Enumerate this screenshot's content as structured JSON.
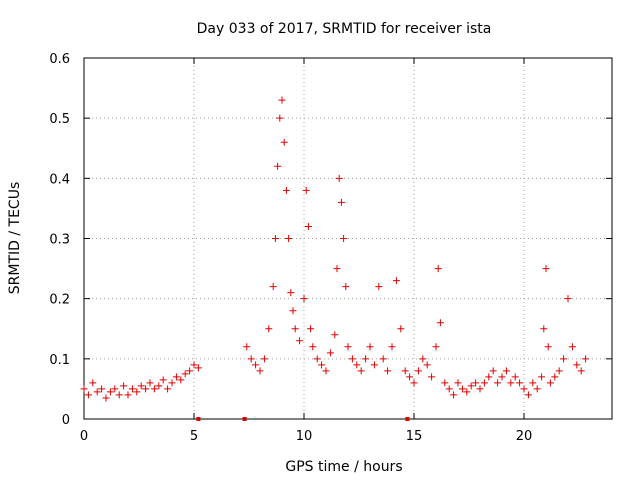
{
  "chart_data": {
    "type": "scatter",
    "title": "Day 033 of 2017, SRMTID for receiver ista",
    "xlabel": "GPS time / hours",
    "ylabel": "SRMTID / TECUs",
    "xlim": [
      0,
      24
    ],
    "ylim": [
      0,
      0.6
    ],
    "xticks": [
      0,
      5,
      10,
      15,
      20
    ],
    "xtick_labels": [
      "0",
      "5",
      "10",
      "15",
      "20"
    ],
    "yticks": [
      0,
      0.1,
      0.2,
      0.3,
      0.4,
      0.5,
      0.6
    ],
    "ytick_labels": [
      "0",
      "0.1",
      "0.2",
      "0.3",
      "0.4",
      "0.5",
      "0.6"
    ],
    "grid": true,
    "marker": "plus",
    "color": "#e00000",
    "series": [
      {
        "name": "SRMTID",
        "x": [
          0.0,
          0.2,
          0.4,
          0.6,
          0.8,
          1.0,
          1.2,
          1.4,
          1.6,
          1.8,
          2.0,
          2.2,
          2.4,
          2.6,
          2.8,
          3.0,
          3.2,
          3.4,
          3.6,
          3.8,
          4.0,
          4.2,
          4.4,
          4.6,
          4.8,
          5.0,
          5.2,
          7.4,
          7.6,
          7.8,
          8.0,
          8.2,
          8.4,
          8.6,
          8.7,
          8.8,
          8.9,
          9.0,
          9.1,
          9.2,
          9.3,
          9.4,
          9.5,
          9.6,
          9.8,
          10.0,
          10.1,
          10.2,
          10.3,
          10.4,
          10.6,
          10.8,
          11.0,
          11.2,
          11.4,
          11.5,
          11.6,
          11.7,
          11.8,
          11.9,
          12.0,
          12.2,
          12.4,
          12.6,
          12.8,
          13.0,
          13.2,
          13.4,
          13.6,
          13.8,
          14.0,
          14.2,
          14.4,
          14.6,
          14.8,
          15.0,
          15.2,
          15.4,
          15.6,
          15.8,
          16.0,
          16.1,
          16.2,
          16.4,
          16.6,
          16.8,
          17.0,
          17.2,
          17.4,
          17.6,
          17.8,
          18.0,
          18.2,
          18.4,
          18.6,
          18.8,
          19.0,
          19.2,
          19.4,
          19.6,
          19.8,
          20.0,
          20.2,
          20.4,
          20.6,
          20.8,
          20.9,
          21.0,
          21.1,
          21.2,
          21.4,
          21.6,
          21.8,
          22.0,
          22.2,
          22.4,
          22.6,
          22.8
        ],
        "y": [
          0.05,
          0.04,
          0.06,
          0.045,
          0.05,
          0.035,
          0.045,
          0.05,
          0.04,
          0.055,
          0.04,
          0.05,
          0.045,
          0.055,
          0.05,
          0.06,
          0.05,
          0.055,
          0.065,
          0.05,
          0.06,
          0.07,
          0.065,
          0.075,
          0.08,
          0.09,
          0.085,
          0.12,
          0.1,
          0.09,
          0.08,
          0.1,
          0.15,
          0.22,
          0.3,
          0.42,
          0.5,
          0.53,
          0.46,
          0.38,
          0.3,
          0.21,
          0.18,
          0.15,
          0.13,
          0.2,
          0.38,
          0.32,
          0.15,
          0.12,
          0.1,
          0.09,
          0.08,
          0.11,
          0.14,
          0.25,
          0.4,
          0.36,
          0.3,
          0.22,
          0.12,
          0.1,
          0.09,
          0.08,
          0.1,
          0.12,
          0.09,
          0.22,
          0.1,
          0.08,
          0.12,
          0.23,
          0.15,
          0.08,
          0.07,
          0.06,
          0.08,
          0.1,
          0.09,
          0.07,
          0.12,
          0.25,
          0.16,
          0.06,
          0.05,
          0.04,
          0.06,
          0.05,
          0.045,
          0.055,
          0.06,
          0.05,
          0.06,
          0.07,
          0.08,
          0.06,
          0.07,
          0.08,
          0.06,
          0.07,
          0.06,
          0.05,
          0.04,
          0.06,
          0.05,
          0.07,
          0.15,
          0.25,
          0.12,
          0.06,
          0.07,
          0.08,
          0.1,
          0.2,
          0.12,
          0.09,
          0.08,
          0.1
        ]
      }
    ],
    "gap_markers_x": [
      5.2,
      7.3,
      14.7
    ]
  }
}
